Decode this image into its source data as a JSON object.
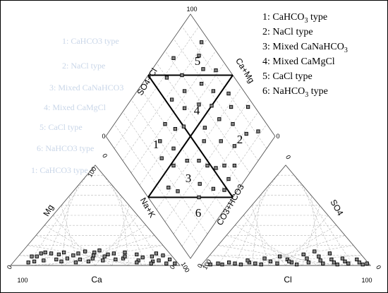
{
  "chart_data": {
    "type": "scatter",
    "title": "",
    "legend": {
      "placement": "top-right",
      "items": [
        {
          "number": "1",
          "text": "CaHCO",
          "sub": "3",
          "suffix": " type"
        },
        {
          "number": "2",
          "text": "NaCl type",
          "sub": "",
          "suffix": ""
        },
        {
          "number": "3",
          "text": "Mixed CaNaHCO",
          "sub": "3",
          "suffix": ""
        },
        {
          "number": "4",
          "text": "Mixed CaMgCl",
          "sub": "",
          "suffix": ""
        },
        {
          "number": "5",
          "text": "CaCl type",
          "sub": "",
          "suffix": ""
        },
        {
          "number": "6",
          "text": "NaHCO",
          "sub": "3",
          "suffix": " type"
        }
      ]
    },
    "region_labels": [
      "1",
      "2",
      "3",
      "4",
      "5",
      "6"
    ],
    "axes": {
      "cation_triangle": {
        "bottom": "Ca",
        "left": "Mg",
        "right": "Na+K"
      },
      "anion_triangle": {
        "bottom": "Cl",
        "left": "CO3+HCO3",
        "right": "SO4"
      },
      "diamond": {
        "upper_left": "SO4+Cl",
        "upper_right": "Ca+Mg"
      }
    },
    "tick_labels": {
      "zero": "0",
      "hundred": "100"
    },
    "grid": true,
    "cation_points_percent": [
      {
        "ca": 88,
        "mg": 3
      },
      {
        "ca": 84,
        "mg": 4
      },
      {
        "ca": 83,
        "mg": 9
      },
      {
        "ca": 80,
        "mg": 9
      },
      {
        "ca": 76,
        "mg": 12
      },
      {
        "ca": 73,
        "mg": 13
      },
      {
        "ca": 70,
        "mg": 12
      },
      {
        "ca": 66,
        "mg": 11
      },
      {
        "ca": 62,
        "mg": 13
      },
      {
        "ca": 58,
        "mg": 10
      },
      {
        "ca": 54,
        "mg": 12
      },
      {
        "ca": 49,
        "mg": 14
      },
      {
        "ca": 44,
        "mg": 13
      },
      {
        "ca": 40,
        "mg": 9
      },
      {
        "ca": 37,
        "mg": 11
      },
      {
        "ca": 33,
        "mg": 12
      },
      {
        "ca": 30,
        "mg": 7
      },
      {
        "ca": 26,
        "mg": 13
      },
      {
        "ca": 22,
        "mg": 5
      },
      {
        "ca": 18,
        "mg": 8
      },
      {
        "ca": 14,
        "mg": 4
      },
      {
        "ca": 10,
        "mg": 5
      },
      {
        "ca": 7,
        "mg": 2
      },
      {
        "ca": 5,
        "mg": 10
      },
      {
        "ca": 3,
        "mg": 6
      },
      {
        "ca": 2,
        "mg": 2
      },
      {
        "ca": 70,
        "mg": 6
      },
      {
        "ca": 63,
        "mg": 7
      },
      {
        "ca": 56,
        "mg": 6
      },
      {
        "ca": 48,
        "mg": 7
      },
      {
        "ca": 46,
        "mg": 10
      },
      {
        "ca": 40,
        "mg": 15
      },
      {
        "ca": 35,
        "mg": 6
      },
      {
        "ca": 28,
        "mg": 9
      },
      {
        "ca": 20,
        "mg": 11
      },
      {
        "ca": 12,
        "mg": 9
      },
      {
        "ca": 8,
        "mg": 12
      },
      {
        "ca": 78,
        "mg": 5
      },
      {
        "ca": 68,
        "mg": 4
      },
      {
        "ca": 52,
        "mg": 4
      },
      {
        "ca": 43,
        "mg": 5
      },
      {
        "ca": 24,
        "mg": 3
      },
      {
        "ca": 16,
        "mg": 2
      },
      {
        "ca": 60,
        "mg": 3
      }
    ],
    "anion_points_percent": [
      {
        "cl": 5,
        "so4": 1
      },
      {
        "cl": 9,
        "so4": 2
      },
      {
        "cl": 12,
        "so4": 1
      },
      {
        "cl": 15,
        "so4": 3
      },
      {
        "cl": 19,
        "so4": 2
      },
      {
        "cl": 23,
        "so4": 1
      },
      {
        "cl": 27,
        "so4": 3
      },
      {
        "cl": 31,
        "so4": 2
      },
      {
        "cl": 35,
        "so4": 1
      },
      {
        "cl": 39,
        "so4": 4
      },
      {
        "cl": 44,
        "so4": 2
      },
      {
        "cl": 48,
        "so4": 6
      },
      {
        "cl": 52,
        "so4": 3
      },
      {
        "cl": 56,
        "so4": 1
      },
      {
        "cl": 59,
        "so4": 7
      },
      {
        "cl": 62,
        "so4": 3
      },
      {
        "cl": 65,
        "so4": 9
      },
      {
        "cl": 68,
        "so4": 5
      },
      {
        "cl": 71,
        "so4": 2
      },
      {
        "cl": 74,
        "so4": 6
      },
      {
        "cl": 77,
        "so4": 3
      },
      {
        "cl": 80,
        "so4": 1
      },
      {
        "cl": 83,
        "so4": 4
      },
      {
        "cl": 86,
        "so4": 2
      },
      {
        "cl": 89,
        "so4": 6
      },
      {
        "cl": 92,
        "so4": 3
      },
      {
        "cl": 95,
        "so4": 1
      },
      {
        "cl": 97,
        "so4": 2
      },
      {
        "cl": 42,
        "so4": 9
      },
      {
        "cl": 55,
        "so4": 11
      },
      {
        "cl": 34,
        "so4": 7
      },
      {
        "cl": 70,
        "so4": 12
      },
      {
        "cl": 60,
        "so4": 14
      },
      {
        "cl": 25,
        "so4": 5
      },
      {
        "cl": 50,
        "so4": 4
      },
      {
        "cl": 80,
        "so4": 7
      }
    ],
    "diamond_points_percent": [
      {
        "ca_mg": 95,
        "so4_cl": 82
      },
      {
        "ca_mg": 88,
        "so4_cl": 78
      },
      {
        "ca_mg": 72,
        "so4_cl": 92
      },
      {
        "ca_mg": 85,
        "so4_cl": 70
      },
      {
        "ca_mg": 78,
        "so4_cl": 65
      },
      {
        "ca_mg": 92,
        "so4_cl": 62
      },
      {
        "ca_mg": 70,
        "so4_cl": 80
      },
      {
        "ca_mg": 65,
        "so4_cl": 72
      },
      {
        "ca_mg": 60,
        "so4_cl": 88
      },
      {
        "ca_mg": 82,
        "so4_cl": 55
      },
      {
        "ca_mg": 75,
        "so4_cl": 50
      },
      {
        "ca_mg": 58,
        "so4_cl": 65
      },
      {
        "ca_mg": 54,
        "so4_cl": 76
      },
      {
        "ca_mg": 50,
        "so4_cl": 58
      },
      {
        "ca_mg": 68,
        "so4_cl": 58
      },
      {
        "ca_mg": 90,
        "so4_cl": 45
      },
      {
        "ca_mg": 86,
        "so4_cl": 38
      },
      {
        "ca_mg": 80,
        "so4_cl": 30
      },
      {
        "ca_mg": 74,
        "so4_cl": 40
      },
      {
        "ca_mg": 62,
        "so4_cl": 45
      },
      {
        "ca_mg": 56,
        "so4_cl": 40
      },
      {
        "ca_mg": 96,
        "so4_cl": 28
      },
      {
        "ca_mg": 66,
        "so4_cl": 30
      },
      {
        "ca_mg": 44,
        "so4_cl": 62
      },
      {
        "ca_mg": 40,
        "so4_cl": 70
      },
      {
        "ca_mg": 35,
        "so4_cl": 55
      },
      {
        "ca_mg": 30,
        "so4_cl": 66
      },
      {
        "ca_mg": 28,
        "so4_cl": 48
      },
      {
        "ca_mg": 38,
        "so4_cl": 42
      },
      {
        "ca_mg": 24,
        "so4_cl": 58
      },
      {
        "ca_mg": 45,
        "so4_cl": 35
      },
      {
        "ca_mg": 48,
        "so4_cl": 28
      },
      {
        "ca_mg": 52,
        "so4_cl": 22
      },
      {
        "ca_mg": 58,
        "so4_cl": 18
      },
      {
        "ca_mg": 36,
        "so4_cl": 25
      },
      {
        "ca_mg": 42,
        "so4_cl": 15
      },
      {
        "ca_mg": 30,
        "so4_cl": 20
      },
      {
        "ca_mg": 64,
        "so4_cl": 12
      },
      {
        "ca_mg": 55,
        "so4_cl": 10
      },
      {
        "ca_mg": 48,
        "so4_cl": 8
      },
      {
        "ca_mg": 20,
        "so4_cl": 35
      },
      {
        "ca_mg": 16,
        "so4_cl": 42
      },
      {
        "ca_mg": 72,
        "so4_cl": 20
      },
      {
        "ca_mg": 84,
        "so4_cl": 18
      },
      {
        "ca_mg": 92,
        "so4_cl": 12
      }
    ]
  },
  "faded_text": [
    "1: CaHCO3 type",
    "2: NaCl type",
    "3: Mixed CaNaHCO3",
    "4: Mixed CaMgCl",
    "5: CaCl type",
    "6: NaHCO3 type",
    "1: CaHCO3 type"
  ]
}
